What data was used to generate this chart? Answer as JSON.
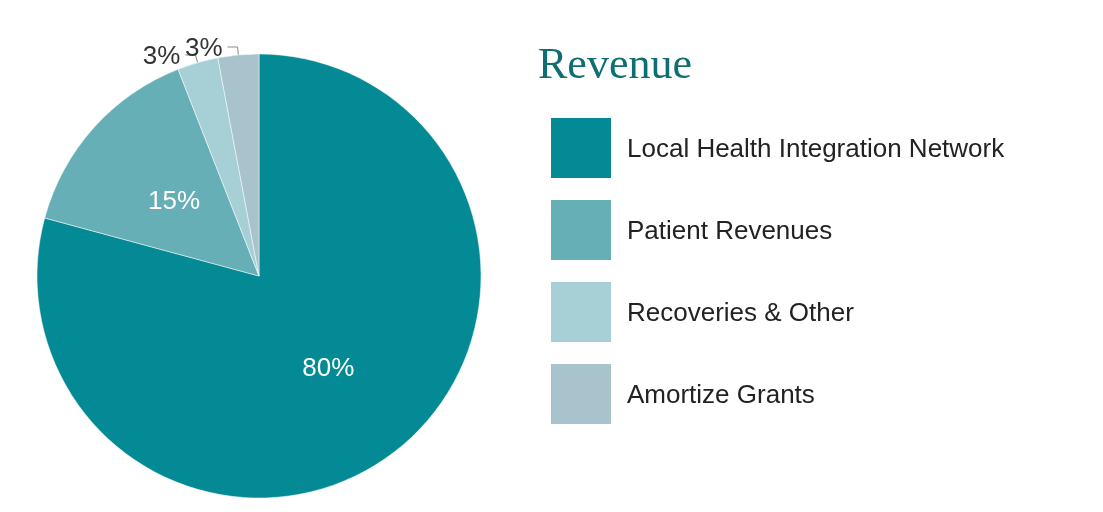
{
  "chart_data": {
    "type": "pie",
    "title": "Revenue",
    "categories": [
      "Local Health Integration Network",
      "Patient Revenues",
      "Recoveries & Other",
      "Amortize Grants"
    ],
    "values": [
      80,
      15,
      3,
      3
    ],
    "value_labels": [
      "80%",
      "15%",
      "3%",
      "3%"
    ],
    "colors": [
      "#038a94",
      "#67afb7",
      "#a6d0d5",
      "#a8c3cb"
    ],
    "legend": "right"
  }
}
